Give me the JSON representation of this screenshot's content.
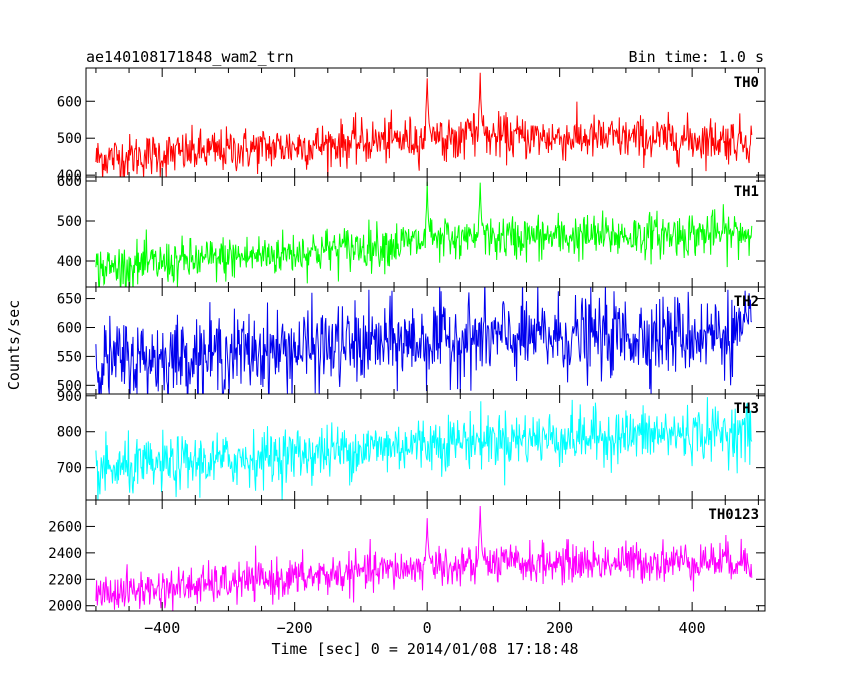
{
  "chart_data": {
    "type": "line",
    "title": "ae140108171848_wam2_trn",
    "subtitle": "Bin time: 1.0 s",
    "xlabel": "Time [sec] 0 = 2014/01/08 17:18:48",
    "ylabel": "Counts/sec",
    "xlim": [
      -515,
      510
    ],
    "x_ticks": [
      -400,
      -200,
      0,
      200,
      400
    ],
    "x_tick_labels": [
      "−400",
      "−200",
      "0",
      "200",
      "400"
    ],
    "grid": false,
    "panels": [
      {
        "name": "TH0",
        "color": "#ff0000",
        "ylim": [
          395,
          690
        ],
        "y_ticks": [
          400,
          500,
          600
        ],
        "y_tick_labels": [
          "400",
          "500",
          "600"
        ],
        "series": {
          "x_range": [
            -500,
            490
          ],
          "baseline_start": 445,
          "baseline_peak": 505,
          "baseline_end": 495,
          "noise": 30,
          "features": [
            {
              "x": 0,
              "value": 680
            },
            {
              "x": 80,
              "value": 688
            }
          ]
        }
      },
      {
        "name": "TH1",
        "color": "#00ff00",
        "ylim": [
          335,
          610
        ],
        "y_ticks": [
          400,
          500,
          600
        ],
        "y_tick_labels": [
          "400",
          "500",
          "600"
        ],
        "series": {
          "x_range": [
            -500,
            490
          ],
          "baseline_start": 380,
          "baseline_peak": 455,
          "baseline_end": 470,
          "noise": 28,
          "features": [
            {
              "x": 0,
              "value": 600
            },
            {
              "x": 80,
              "value": 600
            }
          ]
        }
      },
      {
        "name": "TH2",
        "color": "#0000ee",
        "ylim": [
          485,
          670
        ],
        "y_ticks": [
          500,
          550,
          600,
          650
        ],
        "y_tick_labels": [
          "500",
          "550",
          "600",
          "650"
        ],
        "series": {
          "x_range": [
            -500,
            490
          ],
          "baseline_start": 540,
          "baseline_peak": 580,
          "baseline_end": 590,
          "noise": 35,
          "features": []
        }
      },
      {
        "name": "TH3",
        "color": "#00ffff",
        "ylim": [
          610,
          905
        ],
        "y_ticks": [
          700,
          800,
          900
        ],
        "y_tick_labels": [
          "700",
          "800",
          "900"
        ],
        "series": {
          "x_range": [
            -500,
            490
          ],
          "baseline_start": 690,
          "baseline_peak": 775,
          "baseline_end": 800,
          "noise": 38,
          "features": []
        }
      },
      {
        "name": "TH0123",
        "color": "#ff00ff",
        "ylim": [
          1960,
          2800
        ],
        "y_ticks": [
          2000,
          2200,
          2400,
          2600
        ],
        "y_tick_labels": [
          "2000",
          "2200",
          "2400",
          "2600"
        ],
        "series": {
          "x_range": [
            -500,
            490
          ],
          "baseline_start": 2090,
          "baseline_peak": 2310,
          "baseline_end": 2345,
          "noise": 75,
          "features": [
            {
              "x": 0,
              "value": 2700
            },
            {
              "x": 80,
              "value": 2800
            }
          ]
        }
      }
    ]
  }
}
